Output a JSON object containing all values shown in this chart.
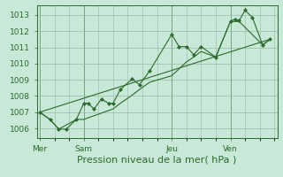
{
  "bg_color": "#c8e8d8",
  "grid_color": "#99bbaa",
  "line_color": "#2d6a2d",
  "marker_color": "#2d6a2d",
  "ylabel_ticks": [
    1006,
    1007,
    1008,
    1009,
    1010,
    1011,
    1012,
    1013
  ],
  "ylim": [
    1005.4,
    1013.6
  ],
  "xlabel": "Pression niveau de la mer( hPa )",
  "xlabel_fontsize": 8,
  "tick_fontsize": 6.5,
  "day_labels": [
    "Mer",
    "Sam",
    "Jeu",
    "Ven"
  ],
  "day_positions": [
    0,
    3,
    9,
    13
  ],
  "xlim": [
    -0.2,
    16.2
  ],
  "series1_jagged": [
    [
      0,
      1007.0
    ],
    [
      0.7,
      1006.55
    ],
    [
      1.3,
      1005.95
    ],
    [
      1.8,
      1005.95
    ],
    [
      2.5,
      1006.55
    ],
    [
      3.0,
      1007.55
    ],
    [
      3.3,
      1007.55
    ],
    [
      3.7,
      1007.2
    ],
    [
      4.2,
      1007.8
    ],
    [
      4.7,
      1007.55
    ],
    [
      5.0,
      1007.55
    ],
    [
      5.5,
      1008.4
    ],
    [
      6.3,
      1009.05
    ],
    [
      6.8,
      1008.7
    ],
    [
      7.5,
      1009.55
    ],
    [
      9.0,
      1011.8
    ],
    [
      9.5,
      1011.05
    ],
    [
      10.0,
      1011.05
    ],
    [
      10.5,
      1010.55
    ],
    [
      11.0,
      1011.05
    ],
    [
      12.0,
      1010.4
    ],
    [
      13.0,
      1012.6
    ],
    [
      13.3,
      1012.75
    ],
    [
      13.6,
      1012.65
    ],
    [
      14.0,
      1013.3
    ],
    [
      14.5,
      1012.85
    ],
    [
      15.2,
      1011.15
    ],
    [
      15.7,
      1011.5
    ]
  ],
  "series2_smooth": [
    [
      0,
      1007.0
    ],
    [
      0.7,
      1006.55
    ],
    [
      1.3,
      1005.95
    ],
    [
      2.5,
      1006.55
    ],
    [
      3.0,
      1006.55
    ],
    [
      5.0,
      1007.2
    ],
    [
      5.5,
      1007.55
    ],
    [
      6.3,
      1008.05
    ],
    [
      6.8,
      1008.4
    ],
    [
      7.5,
      1008.85
    ],
    [
      9.0,
      1009.25
    ],
    [
      10.0,
      1010.1
    ],
    [
      10.5,
      1010.4
    ],
    [
      11.0,
      1010.75
    ],
    [
      12.0,
      1010.4
    ],
    [
      13.0,
      1012.6
    ],
    [
      13.3,
      1012.6
    ],
    [
      13.6,
      1012.6
    ],
    [
      15.2,
      1011.15
    ],
    [
      15.7,
      1011.5
    ]
  ],
  "series3_trend": [
    [
      0,
      1007.0
    ],
    [
      15.7,
      1011.5
    ]
  ]
}
